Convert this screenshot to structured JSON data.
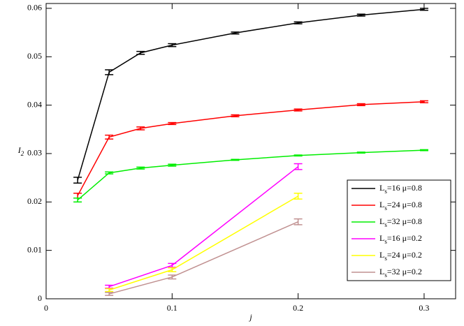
{
  "chart_data": {
    "type": "line",
    "x_label": "j",
    "y_label": "I2",
    "xlim": [
      0,
      0.325
    ],
    "ylim": [
      0,
      0.061
    ],
    "xticks": [
      0,
      0.1,
      0.2,
      0.3
    ],
    "yticks": [
      0,
      0.01,
      0.02,
      0.03,
      0.04,
      0.05,
      0.06
    ],
    "legend": "lower right",
    "series": [
      {
        "name": "Ls=16  μ=0.8",
        "color": "#000000",
        "x": [
          0.025,
          0.05,
          0.075,
          0.1,
          0.15,
          0.2,
          0.25,
          0.3
        ],
        "values": [
          0.0245,
          0.0468,
          0.0508,
          0.0524,
          0.0549,
          0.057,
          0.0586,
          0.0598
        ],
        "errors": [
          0.0006,
          0.0005,
          0.0003,
          0.0003,
          0.0002,
          0.0002,
          0.0002,
          0.0002
        ]
      },
      {
        "name": "Ls=24  μ=0.8",
        "color": "#ff0000",
        "x": [
          0.025,
          0.05,
          0.075,
          0.1,
          0.15,
          0.2,
          0.25,
          0.3
        ],
        "values": [
          0.0213,
          0.0334,
          0.0352,
          0.0362,
          0.0378,
          0.039,
          0.0401,
          0.0407
        ],
        "errors": [
          0.0005,
          0.0004,
          0.0003,
          0.0002,
          0.0002,
          0.0002,
          0.0002,
          0.0002
        ]
      },
      {
        "name": "Ls=32  μ=0.8",
        "color": "#00ee00",
        "x": [
          0.025,
          0.05,
          0.075,
          0.1,
          0.15,
          0.2,
          0.25,
          0.3
        ],
        "values": [
          0.0204,
          0.026,
          0.027,
          0.0276,
          0.0287,
          0.0296,
          0.0302,
          0.0307
        ],
        "errors": [
          0.0004,
          0.0002,
          0.0002,
          0.0002,
          0.0001,
          0.0001,
          0.0001,
          0.0001
        ]
      },
      {
        "name": "Ls=16  μ=0.2",
        "color": "#ff00ff",
        "x": [
          0.05,
          0.1,
          0.2
        ],
        "values": [
          0.0025,
          0.0069,
          0.0273
        ],
        "errors": [
          0.0003,
          0.0004,
          0.0006
        ]
      },
      {
        "name": "Ls=24  μ=0.2",
        "color": "#ffff00",
        "x": [
          0.05,
          0.1,
          0.2
        ],
        "values": [
          0.0018,
          0.006,
          0.0212
        ],
        "errors": [
          0.0003,
          0.0004,
          0.0006
        ]
      },
      {
        "name": "Ls=32  μ=0.2",
        "color": "#c09090",
        "x": [
          0.05,
          0.1,
          0.2
        ],
        "values": [
          0.001,
          0.0045,
          0.0159
        ],
        "errors": [
          0.0003,
          0.0004,
          0.0006
        ]
      }
    ]
  }
}
